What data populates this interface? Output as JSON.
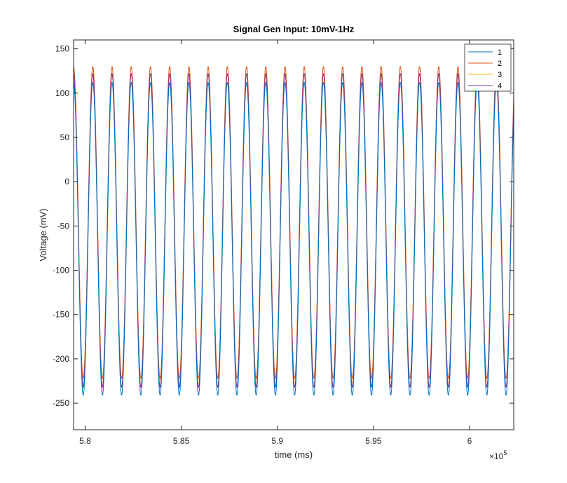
{
  "chart_data": {
    "type": "line",
    "title": "Signal Gen Input: 10mV-1Hz",
    "xlabel": "time (ms)",
    "ylabel": "Voltage (mV)",
    "x_exponent_label": "×10",
    "x_exponent_power": "5",
    "x_scale_factor": 100000,
    "xlim": [
      579400,
      602300
    ],
    "ylim": [
      -280,
      160
    ],
    "x_ticks": [
      580000,
      585000,
      590000,
      595000,
      600000
    ],
    "x_tick_labels": [
      "5.8",
      "5.85",
      "5.9",
      "5.95",
      "6"
    ],
    "y_ticks": [
      -250,
      -200,
      -150,
      -100,
      -50,
      0,
      50,
      100,
      150
    ],
    "y_tick_labels": [
      "-250",
      "-200",
      "-150",
      "-100",
      "-50",
      "0",
      "50",
      "100",
      "150"
    ],
    "frequency_hz": 1,
    "grid": false,
    "legend_location": "top-right",
    "series": [
      {
        "name": "1",
        "color": "#0072BD",
        "max": 112,
        "min": -241,
        "phase_ms": 580400
      },
      {
        "name": "2",
        "color": "#D95319",
        "max": 130,
        "min": -222,
        "phase_ms": 580400
      },
      {
        "name": "3",
        "color": "#EDB120",
        "max": 122,
        "min": -232,
        "phase_ms": 580400
      },
      {
        "name": "4",
        "color": "#7E2F8E",
        "max": 122,
        "min": -232,
        "phase_ms": 580400
      }
    ]
  }
}
